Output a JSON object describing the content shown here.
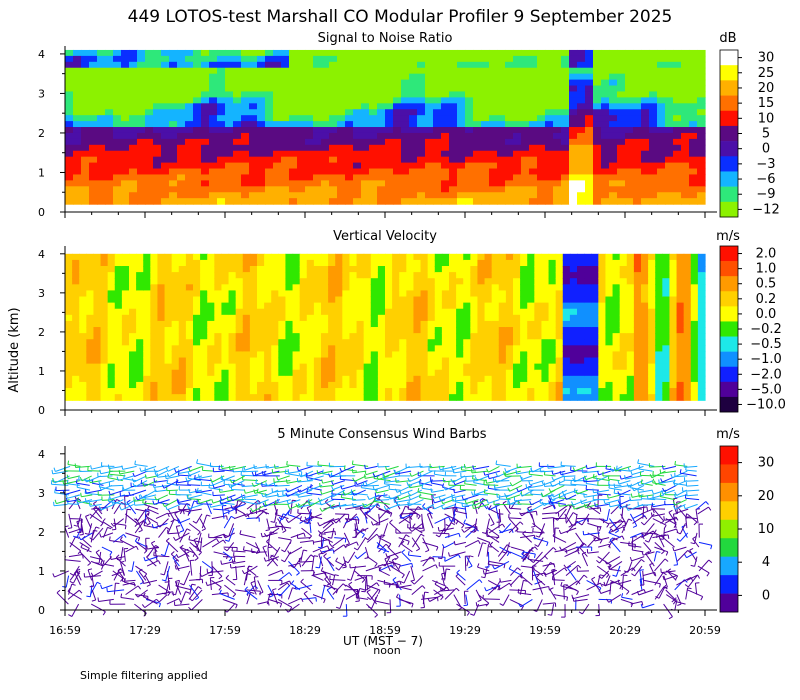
{
  "title": "449 LOTOS-test Marshall CO Modular Profiler  9 September 2025",
  "ylabel": "Altitude (km)",
  "xlabel": "UT  (MST − 7)",
  "noon_label": "noon",
  "footnote": "Simple filtering applied",
  "chart_data": [
    {
      "type": "heatmap",
      "title": "Signal to Noise Ratio",
      "unit": "dB",
      "x_ticks": [
        "16:59",
        "17:29",
        "17:59",
        "18:29",
        "18:59",
        "19:29",
        "19:59",
        "20:29",
        "20:59"
      ],
      "y_ticks": [
        "0",
        "1",
        "2",
        "3",
        "4"
      ],
      "ylim": [
        0,
        4.2
      ],
      "colorbar": {
        "labels": [
          "30",
          "25",
          "20",
          "15",
          "10",
          "5",
          "0",
          "−3",
          "−6",
          "−9",
          "−12"
        ],
        "colors": [
          "#ffffff",
          "#ffff00",
          "#ffb000",
          "#ff7000",
          "#ff1000",
          "#5a0a82",
          "#4b0fa8",
          "#0a2fff",
          "#14b4ff",
          "#2ee87a",
          "#8cf200"
        ]
      },
      "note": "SNR field: high (red/orange) near ground, decreasing aloft through purple to blue/green layers near 2-3.5 km"
    },
    {
      "type": "heatmap",
      "title": "Vertical Velocity",
      "unit": "m/s",
      "x_ticks": [
        "16:59",
        "17:29",
        "17:59",
        "18:29",
        "18:59",
        "19:29",
        "19:59",
        "20:29",
        "20:59"
      ],
      "y_ticks": [
        "0",
        "1",
        "2",
        "3",
        "4"
      ],
      "ylim": [
        0,
        4.2
      ],
      "colorbar": {
        "labels": [
          "2.0",
          "1.0",
          "0.5",
          "0.2",
          "0.0",
          "−0.2",
          "−0.5",
          "−1.0",
          "−2.0",
          "−5.0",
          "−10.0"
        ],
        "colors": [
          "#ff1000",
          "#ff5000",
          "#ff9a00",
          "#ffd000",
          "#ffff00",
          "#30e800",
          "#1de8e8",
          "#1090ff",
          "#1020ff",
          "#50009a",
          "#1e0040"
        ]
      },
      "note": "Mostly weak updrafts/downdrafts (yellow-green-cyan), strong downdraft band after 19:59"
    },
    {
      "type": "scatter",
      "title": "5 Minute Consensus Wind Barbs",
      "unit": "m/s",
      "x_ticks": [
        "16:59",
        "17:29",
        "17:59",
        "18:29",
        "18:59",
        "19:29",
        "19:59",
        "20:29",
        "20:59"
      ],
      "y_ticks": [
        "0",
        "1",
        "2",
        "3",
        "4"
      ],
      "ylim": [
        0,
        4.2
      ],
      "colorbar": {
        "labels": [
          "30",
          "20",
          "10",
          "4",
          "0"
        ],
        "colors": [
          "#ff1000",
          "#ff4500",
          "#ff9000",
          "#ffd000",
          "#90f000",
          "#22d83e",
          "#17a8ff",
          "#0a24ff",
          "#50009a"
        ]
      },
      "note": "Wind barbs: light winds (purple) below ~2.5 km, stronger cyan/green winds near 3-3.7 km"
    }
  ]
}
